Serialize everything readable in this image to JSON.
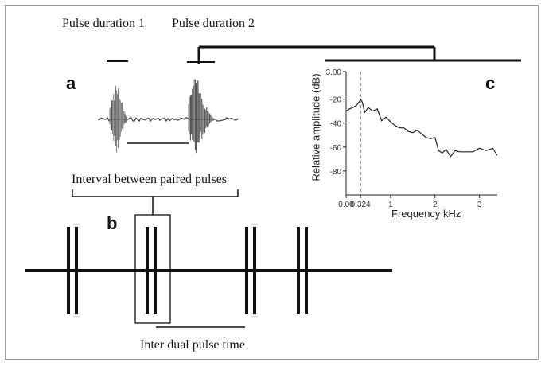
{
  "labels": {
    "pulse_duration_1": "Pulse duration 1",
    "pulse_duration_2": "Pulse duration 2",
    "interval_between_pulses": "Interval between paired pulses",
    "inter_dual_pulse_time": "Inter dual pulse time"
  },
  "panels": {
    "a": "a",
    "b": "b",
    "c": "c"
  },
  "chart_data": {
    "type": "line",
    "xlabel": "Frequency kHz",
    "ylabel": "Relative amplitude (dB)",
    "xlim": [
      0,
      3.4
    ],
    "ylim": [
      -100,
      3
    ],
    "x_ticks": [
      {
        "value": 0,
        "label": "0.00"
      },
      {
        "value": 0.324,
        "label": "0.324"
      },
      {
        "value": 1,
        "label": "1"
      },
      {
        "value": 2,
        "label": "2"
      },
      {
        "value": 3,
        "label": "3"
      }
    ],
    "y_ticks": [
      {
        "value": 3,
        "label": "3.00"
      },
      {
        "value": -20,
        "label": "-20"
      },
      {
        "value": -40,
        "label": "-40"
      },
      {
        "value": -60,
        "label": "-60"
      },
      {
        "value": -80,
        "label": "-80"
      }
    ],
    "marker_x": 0.324,
    "series": [
      {
        "x": [
          0,
          0.08,
          0.16,
          0.24,
          0.3,
          0.324,
          0.36,
          0.42,
          0.5,
          0.6,
          0.7,
          0.8,
          0.9,
          1.0,
          1.1,
          1.2,
          1.3,
          1.4,
          1.5,
          1.6,
          1.7,
          1.8,
          1.9,
          2.0,
          2.08,
          2.16,
          2.25,
          2.35,
          2.45,
          2.55,
          2.7,
          2.85,
          3.0,
          3.15,
          3.3,
          3.4
        ],
        "y": [
          -30,
          -28,
          -27,
          -25,
          -22,
          -20,
          -22,
          -31,
          -27,
          -30,
          -28,
          -38,
          -35,
          -39,
          -42,
          -44,
          -44,
          -47,
          -48,
          -46,
          -49,
          -52,
          -53,
          -52,
          -63,
          -65,
          -62,
          -68,
          -63,
          -64,
          -64,
          -64,
          -61,
          -63,
          -61,
          -67
        ]
      }
    ]
  }
}
